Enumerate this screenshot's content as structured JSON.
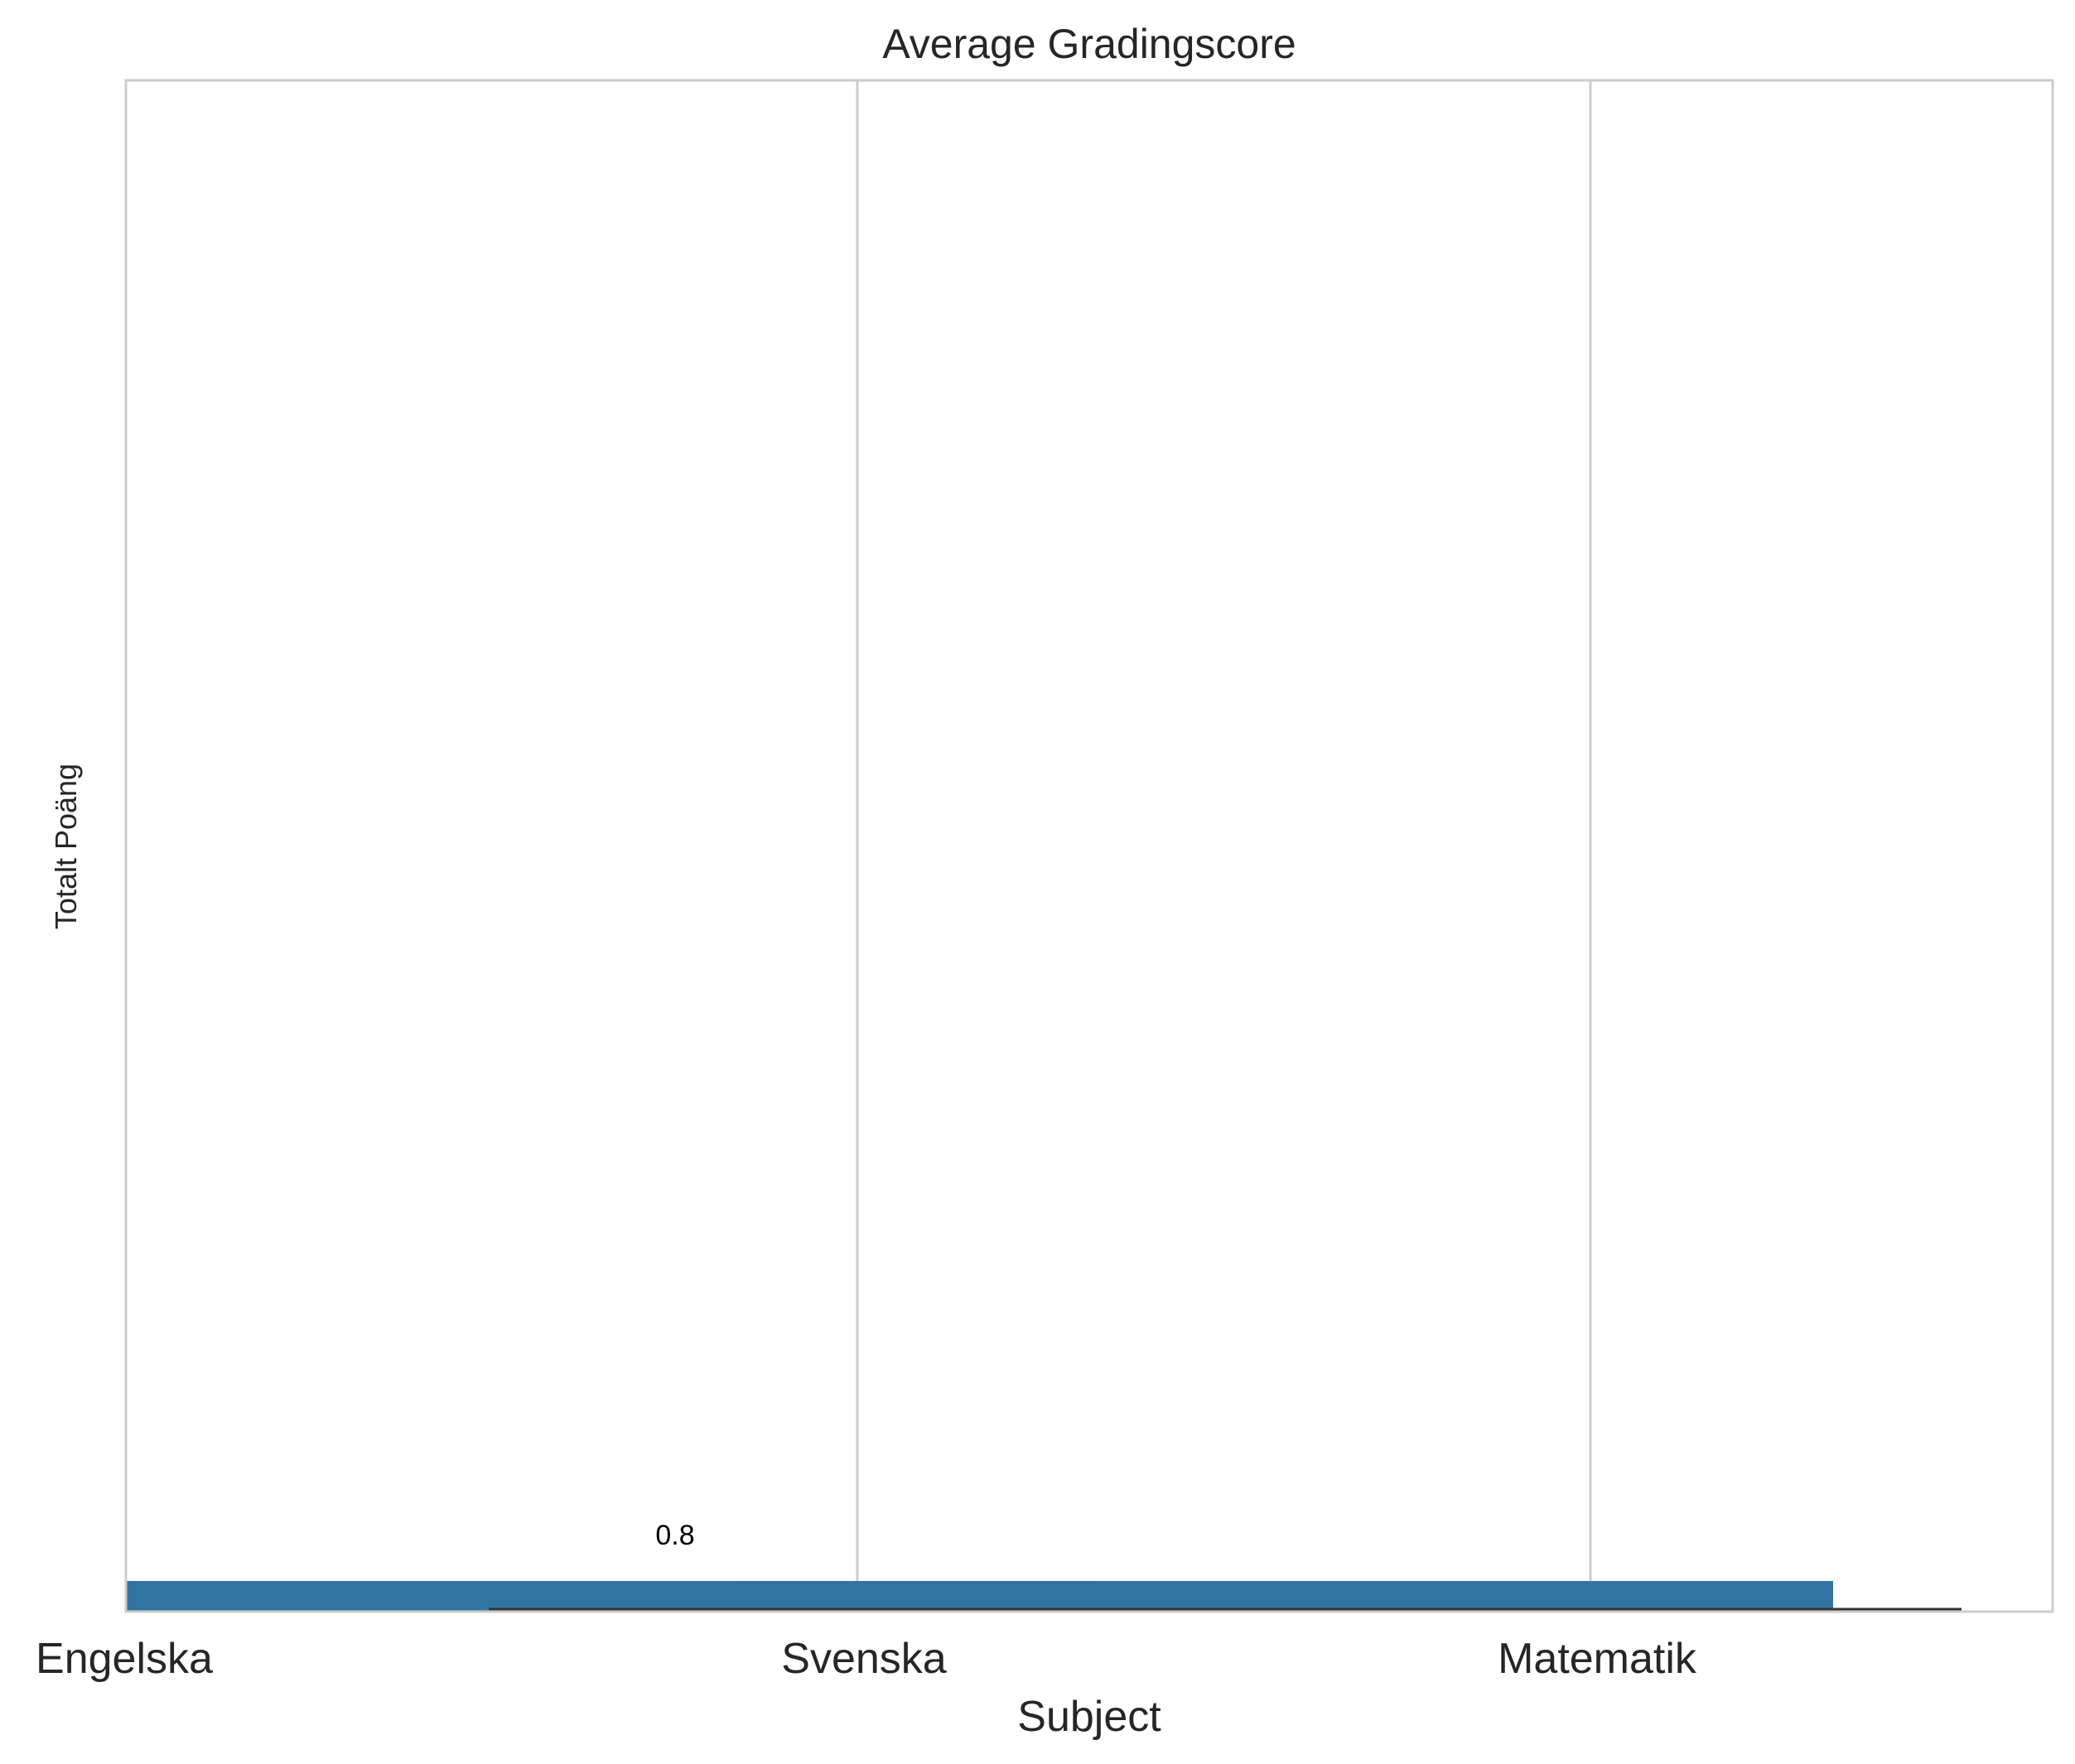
{
  "chart_data": {
    "type": "bar",
    "title": "Average Gradingscore",
    "xlabel": "Subject",
    "ylabel": "Totalt Poäng",
    "categories": [
      "Engelska",
      "Svenska",
      "Matematik"
    ],
    "series": [
      {
        "values": [
          0.8,
          0.8,
          0.0
        ],
        "data_labels": [
          "0.8",
          "",
          ""
        ]
      }
    ],
    "ylim": [
      0,
      40
    ],
    "grid": "vertical",
    "colors": {
      "bar": "#3274a1",
      "baseline": "#333333",
      "grid": "#cccccc",
      "frame": "#cccccc"
    }
  }
}
